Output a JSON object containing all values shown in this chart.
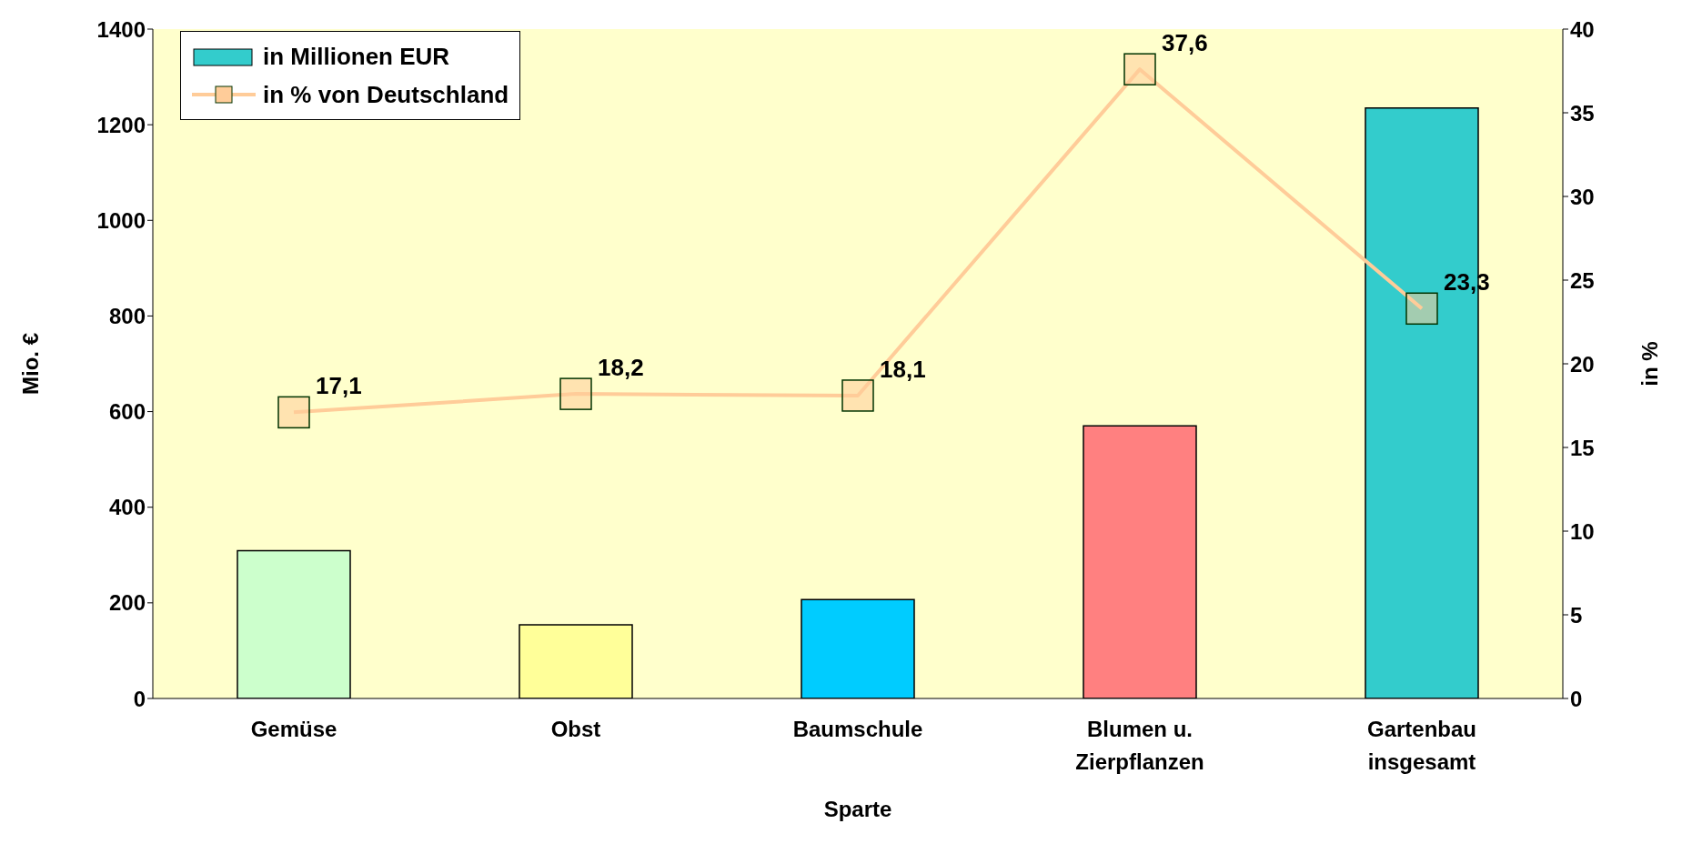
{
  "chart_data": {
    "type": "bar",
    "xlabel": "Sparte",
    "ylabel": "Mio. €",
    "y2label": "in %",
    "categories": [
      "Gemüse",
      "Obst",
      "Baumschule",
      "Blumen u. Zierpflanzen",
      "Gartenbau insgesamt"
    ],
    "series": [
      {
        "name": "in Millionen EUR",
        "color": "#33cccc",
        "colors": [
          "#ccffcc",
          "#ffff99",
          "#00ccff",
          "#ff8080",
          "#33cccc"
        ],
        "values": [
          309,
          154,
          207,
          570,
          1235
        ]
      },
      {
        "type": "line",
        "axis": "y2",
        "name": "in % von Deutschland",
        "color": "#ffcc99",
        "marker": "square",
        "values": [
          17.1,
          18.2,
          18.1,
          37.6,
          23.3
        ],
        "value_labels": [
          "17,1",
          "18,2",
          "18,1",
          "37,6",
          "23,3"
        ]
      }
    ],
    "ylim": [
      0,
      1400
    ],
    "yticks": [
      0,
      200,
      400,
      600,
      800,
      1000,
      1200,
      1400
    ],
    "y2lim": [
      0,
      40
    ],
    "y2ticks": [
      0,
      5,
      10,
      15,
      20,
      25,
      30,
      35,
      40
    ],
    "grid": false,
    "legend": "top left"
  }
}
